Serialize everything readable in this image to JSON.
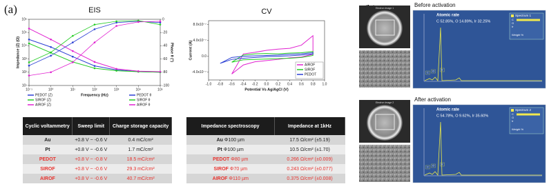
{
  "panel_a_label": "(a)",
  "chart_data": [
    {
      "type": "line",
      "title": "EIS",
      "x_label": "Frequency (Hz)",
      "y_label": "Impedance |Z| (Ω)",
      "y2_label": "Phase θ (°)",
      "xlog": true,
      "ylog": true,
      "x": [
        0.1,
        1,
        10,
        100,
        1000,
        10000,
        100000
      ],
      "xlim": [
        0.1,
        100000
      ],
      "xticks": [
        {
          "value": 0.1,
          "label": "10⁻¹"
        },
        {
          "value": 1,
          "label": "10⁰"
        },
        {
          "value": 10,
          "label": "10¹"
        },
        {
          "value": 100,
          "label": "10²"
        },
        {
          "value": 1000,
          "label": "10³"
        },
        {
          "value": 10000,
          "label": "10⁴"
        },
        {
          "value": 100000,
          "label": "10⁵"
        }
      ],
      "ylim": [
        10,
        1000000
      ],
      "yticks": [
        {
          "value": 10,
          "label": "10¹"
        },
        {
          "value": 100,
          "label": "10²"
        },
        {
          "value": 1000,
          "label": "10³"
        },
        {
          "value": 10000,
          "label": "10⁴"
        },
        {
          "value": 100000,
          "label": "10⁵"
        },
        {
          "value": 1000000,
          "label": "10⁶"
        }
      ],
      "y2lim": [
        -100,
        0
      ],
      "y2ticks": [
        -100,
        -80,
        -60,
        -40,
        -20,
        0
      ],
      "legend": "below",
      "series": [
        {
          "name": "PEDOT (Z)",
          "color": "#2a3fd4",
          "values": [
            30000,
            8000,
            1500,
            300,
            150,
            110,
            100
          ]
        },
        {
          "name": "SIROF (Z)",
          "color": "#22cc22",
          "values": [
            15000,
            3000,
            600,
            200,
            130,
            110,
            100
          ]
        },
        {
          "name": "AIROF (Z)",
          "color": "#e020d0",
          "values": [
            200000,
            30000,
            4000,
            600,
            180,
            120,
            110
          ]
        },
        {
          "name": "PEDOT θ",
          "color": "#2a3fd4",
          "axis": "y2",
          "values": [
            -70,
            -55,
            -35,
            -15,
            -5,
            -3,
            -5
          ]
        },
        {
          "name": "SIROF θ",
          "color": "#22cc22",
          "axis": "y2",
          "values": [
            -65,
            -50,
            -25,
            -8,
            -3,
            -2,
            -8
          ]
        },
        {
          "name": "AIROF θ",
          "color": "#e020d0",
          "axis": "y2",
          "values": [
            -85,
            -80,
            -65,
            -35,
            -10,
            -4,
            -3
          ]
        }
      ]
    },
    {
      "type": "line",
      "title": "CV",
      "x_label": "Potential Vs Ag/AgCl (V)",
      "y_label": "Current (A)",
      "xlim": [
        -1,
        1
      ],
      "xticks": [
        {
          "value": -1,
          "label": "-1.0"
        },
        -0.8,
        -0.6,
        -0.4,
        -0.2,
        {
          "value": 0,
          "label": "0.0"
        },
        0.2,
        0.4,
        0.6,
        0.8,
        {
          "value": 1,
          "label": "1.0"
        }
      ],
      "ylim": [
        -6e-07,
        9e-07
      ],
      "yticks": [
        {
          "value": -4e-07,
          "label": "-4.0x10⁻⁷"
        },
        {
          "value": 0,
          "label": "0.0"
        },
        {
          "value": 4e-07,
          "label": "4.0x10⁻⁷"
        },
        {
          "value": 8e-07,
          "label": "8.0x10⁻⁷"
        }
      ],
      "legend": "lower right",
      "series": [
        {
          "name": "AIROF",
          "color": "#e020d0",
          "x": [
            -0.6,
            -0.4,
            -0.2,
            0,
            0.2,
            0.4,
            0.6,
            0.7,
            0.8,
            0.8,
            0.6,
            0.4,
            0.2,
            0,
            -0.2,
            -0.4,
            -0.6
          ],
          "values": [
            -4.5e-07,
            6e-08,
            1e-07,
            1.5e-07,
            1.8e-07,
            2e-07,
            2.8e-07,
            4e-07,
            5.2e-07,
            5e-08,
            -2e-08,
            -4e-08,
            -8e-08,
            -1.1e-07,
            -1.4e-07,
            -2.2e-07,
            -4.5e-07
          ]
        },
        {
          "name": "SIROF",
          "color": "#22cc22",
          "x": [
            -0.6,
            -0.4,
            -0.2,
            0,
            0.2,
            0.4,
            0.6,
            0.8,
            0.8,
            0.6,
            0.4,
            0.2,
            0,
            -0.2,
            -0.4,
            -0.6
          ],
          "values": [
            -1.5e-07,
            3e-08,
            6e-08,
            7e-08,
            6e-08,
            8e-08,
            9e-08,
            1.2e-07,
            2e-08,
            -3e-08,
            -5e-08,
            -6e-08,
            -7e-08,
            -8e-08,
            -9e-08,
            -1.5e-07
          ]
        },
        {
          "name": "PEDOT",
          "color": "#2a3fd4",
          "x": [
            -0.8,
            -0.6,
            -0.4,
            -0.2,
            0,
            0.2,
            0.4,
            0.6,
            0.8,
            0.8,
            0.6,
            0.4,
            0.2,
            0,
            -0.2,
            -0.4,
            -0.6,
            -0.8
          ],
          "values": [
            -1.8e-07,
            -3e-08,
            0,
            1e-08,
            2e-08,
            3e-08,
            5e-08,
            6e-08,
            9e-08,
            6e-08,
            3e-08,
            1e-08,
            0,
            -1e-08,
            -3e-08,
            -5e-08,
            -8e-08,
            -1.8e-07
          ]
        }
      ]
    }
  ],
  "tables": [
    {
      "headers": [
        "Cyclic voltammetry",
        "Sweep limit",
        "Charge storage capacity"
      ],
      "rows": [
        [
          "Au",
          "+0.8 V ~ -0.6 V",
          "0.4 mC/cm²"
        ],
        [
          "Pt",
          "+0.8 V ~ -0.6 V",
          "1.7 mC/cm²"
        ],
        [
          "PEDOT",
          "+0.8 V ~ -0.8 V",
          "18.5 mC/cm²"
        ],
        [
          "SIROF",
          "+0.8 V ~ -0.6 V",
          "29.3 mC/cm²"
        ],
        [
          "AIROF",
          "+0.8 V ~ -0.6 V",
          "40.7 mC/cm²"
        ]
      ]
    },
    {
      "headers": [
        "Impedance spectroscopy",
        "Impedance at 1kHz"
      ],
      "rows": [
        [
          "Au",
          "Φ100 µm",
          "17.5 Ω/cm² (±5.19)"
        ],
        [
          "Pt",
          "Φ100 µm",
          "10.5 Ω/cm² (±1.70)"
        ],
        [
          "PEDOT",
          "Φ80 µm",
          "0.266 Ω/cm² (±0.009)"
        ],
        [
          "SIROF",
          "Φ70 µm",
          "0.243 Ω/cm² (±0.077)"
        ],
        [
          "AIROF",
          "Φ110 µm",
          "0.375 Ω/cm² (±0.008)"
        ]
      ]
    }
  ],
  "panel_b": {
    "label": "(b)",
    "states": [
      {
        "title": "Before activation",
        "image_caption": "Electron Image 1",
        "rate_title": "Atomic rate",
        "rate_text": "C 52.85%, O 14.89%, Ir 32.25%",
        "legend_title": "Spectrum 1",
        "legend_items": [
          "C",
          "O",
          "Ir"
        ],
        "legend_footer": "Weight %"
      },
      {
        "title": "After activation",
        "image_caption": "Electron Image 2",
        "rate_title": "Atomic rate",
        "rate_text": "C 54.78%, O 9.62%, Ir 35.60%",
        "legend_title": "Spectrum 2",
        "legend_items": [
          "C",
          "O",
          "Ir"
        ],
        "legend_footer": "Weight %"
      }
    ]
  }
}
